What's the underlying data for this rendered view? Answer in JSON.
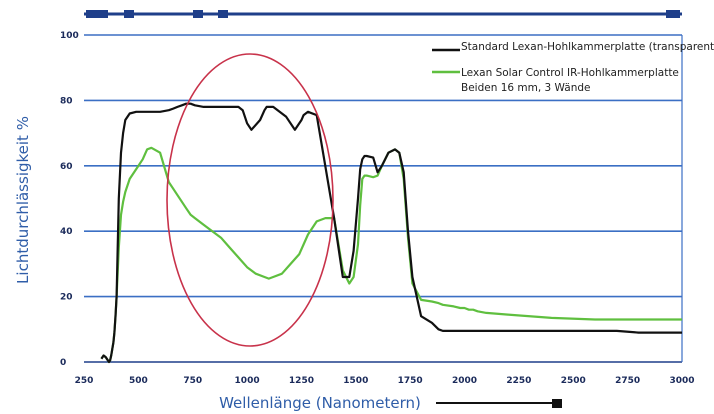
{
  "chart_data": {
    "type": "line",
    "xlabel": "Wellenlänge (Nanometern)",
    "ylabel": "Lichtdurchlässigkeit %",
    "xlim": [
      250,
      3000
    ],
    "ylim": [
      0,
      100
    ],
    "y_ticks": [
      "0",
      "20",
      "40",
      "60",
      "80",
      "100"
    ],
    "x_ticks": [
      "250",
      "500",
      "750",
      "1000",
      "1250",
      "1500",
      "1750",
      "2000",
      "2250",
      "2500",
      "2750",
      "3000"
    ],
    "grid": "horizontal",
    "legend": {
      "position": "top-right",
      "note": "Beiden 16 mm, 3 Wände"
    },
    "series": [
      {
        "name": "Standard Lexan-Hohlkammerplatte (transparent)",
        "color": "#111111",
        "x": [
          330,
          340,
          350,
          360,
          365,
          370,
          375,
          380,
          385,
          390,
          395,
          400,
          410,
          420,
          430,
          440,
          460,
          490,
          520,
          540,
          560,
          600,
          640,
          660,
          680,
          700,
          720,
          740,
          760,
          800,
          900,
          960,
          980,
          1000,
          1020,
          1060,
          1080,
          1090,
          1120,
          1180,
          1220,
          1250,
          1260,
          1280,
          1320,
          1400,
          1440,
          1470,
          1490,
          1510,
          1520,
          1530,
          1540,
          1550,
          1580,
          1600,
          1620,
          1650,
          1680,
          1700,
          1720,
          1740,
          1760,
          1800,
          1850,
          1880,
          1900,
          1950,
          1980,
          2000,
          2020,
          2030,
          2040,
          2060,
          2100,
          2200,
          2400,
          2600,
          2700,
          2800,
          2900,
          3000
        ],
        "y": [
          1,
          2,
          1.5,
          0.5,
          0,
          0.5,
          2,
          4,
          6,
          9,
          14,
          20,
          50,
          64,
          70,
          74,
          76,
          76.5,
          76.5,
          76.5,
          76.5,
          76.5,
          77,
          77.5,
          78,
          78.5,
          79,
          79,
          78.5,
          78,
          78,
          78,
          77,
          73,
          71,
          74,
          77,
          78,
          78,
          75,
          71,
          74,
          75.5,
          76.5,
          75.5,
          44,
          26,
          26,
          34,
          50,
          59,
          62,
          63,
          63,
          62.5,
          58,
          60,
          64,
          65,
          64,
          58,
          40,
          26,
          14,
          12,
          10,
          9.5,
          9.5,
          9.5,
          9.5,
          9.5,
          9.5,
          9.5,
          9.5,
          9.5,
          9.5,
          9.5,
          9.5,
          9.5,
          9,
          9,
          9
        ]
      },
      {
        "name": "Lexan Solar Control IR-Hohlkammerplatte",
        "color": "#5fbf3f",
        "x": [
          330,
          340,
          350,
          360,
          365,
          370,
          375,
          380,
          385,
          390,
          395,
          400,
          410,
          420,
          430,
          440,
          460,
          490,
          520,
          540,
          560,
          600,
          640,
          660,
          680,
          700,
          720,
          740,
          760,
          800,
          840,
          880,
          920,
          960,
          1000,
          1040,
          1080,
          1100,
          1120,
          1160,
          1200,
          1240,
          1280,
          1320,
          1360,
          1400,
          1440,
          1470,
          1490,
          1510,
          1520,
          1530,
          1540,
          1550,
          1580,
          1600,
          1620,
          1650,
          1680,
          1700,
          1720,
          1740,
          1760,
          1800,
          1850,
          1880,
          1900,
          1950,
          1980,
          2000,
          2020,
          2030,
          2040,
          2060,
          2100,
          2200,
          2400,
          2600,
          2700,
          2800,
          2900,
          3000
        ],
        "y": [
          1,
          2,
          1.5,
          0.5,
          0,
          0.5,
          2,
          4,
          6,
          9,
          14,
          20,
          35,
          45,
          49,
          52,
          56,
          59,
          62,
          65,
          65.5,
          64,
          55,
          53,
          51,
          49,
          47,
          45,
          44,
          42,
          40,
          38,
          35,
          32,
          29,
          27,
          26,
          25.5,
          26,
          27,
          30,
          33,
          39,
          43,
          44,
          44,
          28,
          24,
          26,
          36,
          48,
          56,
          57,
          57,
          56.5,
          57,
          60,
          64,
          65,
          64,
          56,
          38,
          24,
          19,
          18.5,
          18,
          17.5,
          17,
          16.5,
          16.5,
          16,
          16,
          16,
          15.5,
          15,
          14.5,
          13.5,
          13,
          13,
          13,
          13,
          13
        ]
      }
    ],
    "annotation": {
      "type": "ellipse",
      "color": "#c8324a"
    }
  }
}
